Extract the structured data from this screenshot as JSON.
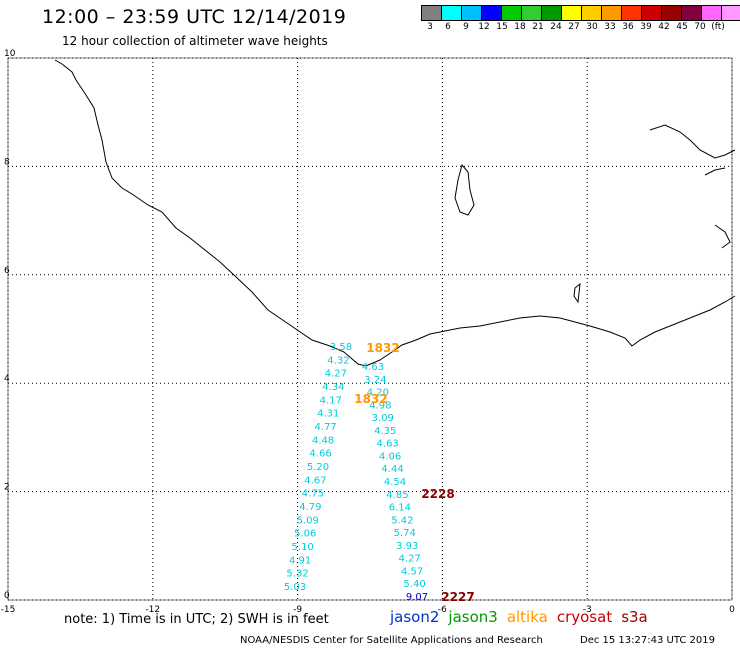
{
  "header": {
    "title": "12:00 – 23:59 UTC 12/14/2019",
    "subtitle": "12 hour collection of altimeter wave heights"
  },
  "legend": {
    "colors": [
      "#808080",
      "#00ffff",
      "#00bfff",
      "#0000ff",
      "#00cc00",
      "#33cc33",
      "#009900",
      "#ffff00",
      "#ffcc00",
      "#ff9900",
      "#ff3300",
      "#cc0000",
      "#990000",
      "#800040",
      "#ff66ff",
      "#ff99ff",
      "#000000"
    ],
    "labels": [
      "3",
      "6",
      "9",
      "12",
      "15",
      "18",
      "21",
      "24",
      "27",
      "30",
      "33",
      "36",
      "39",
      "42",
      "45",
      "70",
      "(ft)"
    ]
  },
  "axes": {
    "x_ticks": [
      "-15",
      "-12",
      "-9",
      "-6",
      "-3",
      "0"
    ],
    "y_ticks": [
      "0",
      "2",
      "4",
      "6",
      "8",
      "10"
    ]
  },
  "track_labels": [
    {
      "text": "1832",
      "sat": "altika"
    },
    {
      "text": "1832",
      "sat": "altika"
    },
    {
      "text": "2228",
      "sat": "cryosat"
    },
    {
      "text": "2227",
      "sat": "cryosat"
    }
  ],
  "track_a": [
    "3.58",
    "4.32",
    "4.27",
    "4.34",
    "4.17",
    "4.31",
    "4.77",
    "4.48",
    "4.66",
    "5.20",
    "4.67",
    "4.75",
    "4.79",
    "5.09",
    "5.06",
    "5.10",
    "4.91",
    "5.32",
    "5.03"
  ],
  "track_b": [
    "4.63",
    "3.24",
    "4.20",
    "4.98",
    "3.09",
    "4.35",
    "4.63",
    "4.06",
    "4.44",
    "4.54",
    "4.85",
    "6.14",
    "5.42",
    "5.74",
    "3.93",
    "4.27",
    "4.57",
    "5.40",
    "9.07"
  ],
  "colors": {
    "cyan": "#00ccdd",
    "orange": "#ff9900",
    "darkred": "#880000",
    "blue": "#0000cc",
    "jason2": "#0033cc",
    "jason3": "#009900",
    "altika": "#ff9900",
    "cryosat": "#cc0000",
    "s3a": "#990000"
  },
  "note": "note:  1) Time is in UTC;  2) SWH is in feet",
  "satellites": {
    "jason2": "jason2",
    "jason3": "jason3",
    "altika": "altika",
    "cryosat": "cryosat",
    "s3a": "s3a"
  },
  "footer": {
    "center": "NOAA/NESDIS Center for Satellite Applications and Research",
    "timestamp": "Dec 15 13:27:43 UTC 2019"
  }
}
